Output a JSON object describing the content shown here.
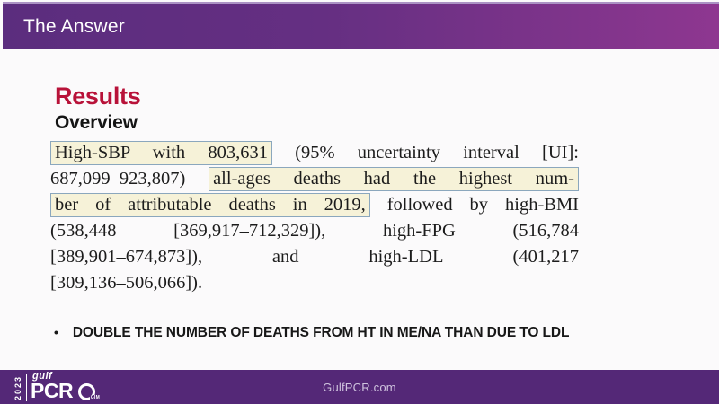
{
  "header": {
    "title": "The Answer"
  },
  "content": {
    "results_heading": "Results",
    "overview_heading": "Overview",
    "excerpt_lines": [
      {
        "segments": [
          {
            "text": "High-SBP with 803,631",
            "highlight": true
          },
          {
            "text": " (95% uncertainty interval [UI]:",
            "highlight": false
          }
        ]
      },
      {
        "segments": [
          {
            "text": "687,099–923,807) ",
            "highlight": false
          },
          {
            "text": "all-ages deaths had the highest num-",
            "highlight": true
          }
        ]
      },
      {
        "segments": [
          {
            "text": "ber of attributable deaths in 2019,",
            "highlight": true
          },
          {
            "text": " followed by high-BMI",
            "highlight": false
          }
        ]
      },
      {
        "segments": [
          {
            "text": "(538,448 [369,917–712,329]), high-FPG (516,784",
            "highlight": false
          }
        ]
      },
      {
        "segments": [
          {
            "text": "[389,901–674,873]), and high-LDL (401,217",
            "highlight": false
          }
        ]
      },
      {
        "segments": [
          {
            "text": "[309,136–506,066]).",
            "highlight": false
          }
        ],
        "last": true
      }
    ],
    "bullet_glyph": "•",
    "bullet_text": "DOUBLE THE NUMBER OF DEATHS FROM HT IN ME/NA THAN DUE TO LDL"
  },
  "footer": {
    "website": "GulfPCR.com",
    "logo": {
      "year": "2023",
      "brand_top": "gulf",
      "brand_main": "PCR",
      "brand_suffix": "GIM"
    }
  },
  "colors": {
    "header_gradient_left": "#5b2d7e",
    "header_gradient_right": "#8e3790",
    "footer_bg": "#542877",
    "results_red": "#b81239",
    "highlight_bg": "#f6f2d8",
    "highlight_border": "#8ba7bd"
  }
}
